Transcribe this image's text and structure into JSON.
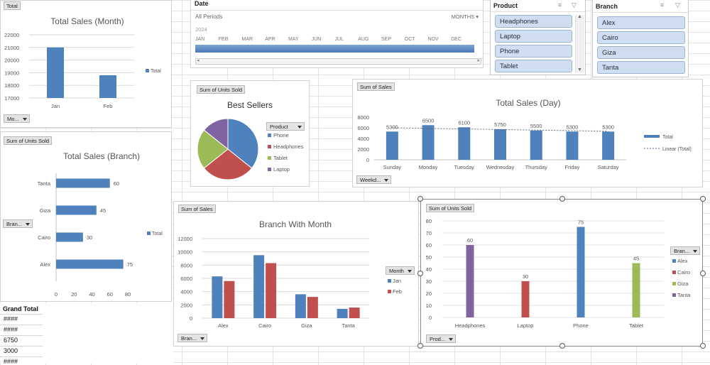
{
  "charts": {
    "month": {
      "filter_field": "Total",
      "title": "Total Sales (Month)",
      "legend": "Total",
      "axis_button": "Mo..."
    },
    "branch": {
      "value_button": "Sum of Units Sold",
      "title": "Total Sales (Branch)",
      "legend": "Total",
      "axis_button": "Bran..."
    },
    "sellers": {
      "value_button": "Sum of Units Sold",
      "title": "Best Sellers",
      "legend_button": "Product"
    },
    "day": {
      "value_button": "Sum of Sales",
      "title": "Total Sales (Day)",
      "legend_total": "Total",
      "legend_linear": "Linear (Total)",
      "axis_button": "Weekd..."
    },
    "bwm": {
      "value_button": "Sum of Sales",
      "title": "Branch With Month",
      "legend_button": "Month",
      "axis_button": "Bran..."
    },
    "units": {
      "value_button": "Sum of Units Sold",
      "legend_button": "Bran...",
      "axis_button": "Prod..."
    }
  },
  "timeline": {
    "title": "Date",
    "range_label": "All Periods",
    "level": "MONTHS",
    "year": "2024",
    "months": [
      "JAN",
      "FEB",
      "MAR",
      "APR",
      "MAY",
      "JUN",
      "JUL",
      "AUG",
      "SEP",
      "OCT",
      "NOV",
      "DEC"
    ]
  },
  "product_slicer": {
    "title": "Product",
    "items": [
      "Headphones",
      "Laptop",
      "Phone",
      "Tablet"
    ]
  },
  "branch_slicer": {
    "title": "Branch",
    "items": [
      "Alex",
      "Cairo",
      "Giza",
      "Tanta"
    ]
  },
  "grand_total": {
    "header": "Grand Total",
    "rows": [
      "####",
      "####",
      "6750",
      "3000",
      "####"
    ]
  },
  "chart_data": [
    {
      "type": "bar",
      "title": "Total Sales (Month)",
      "categories": [
        "Jan",
        "Feb"
      ],
      "series": [
        {
          "name": "Total",
          "values": [
            21000,
            18800
          ]
        }
      ],
      "ylim": [
        17000,
        22000
      ],
      "yticks": [
        17000,
        18000,
        19000,
        20000,
        21000,
        22000
      ],
      "grid": true,
      "legend": "right",
      "color": "#4f81bd"
    },
    {
      "type": "bar",
      "orientation": "horizontal",
      "title": "Total Sales (Branch)",
      "categories": [
        "Tanta",
        "Giza",
        "Cairo",
        "Alex"
      ],
      "series": [
        {
          "name": "Total",
          "values": [
            60,
            45,
            30,
            75
          ]
        }
      ],
      "xlim": [
        0,
        80
      ],
      "xticks": [
        0,
        20,
        40,
        60,
        80
      ],
      "data_labels": true,
      "legend": "right",
      "color": "#4f81bd"
    },
    {
      "type": "pie",
      "title": "Best Sellers",
      "categories": [
        "Phone",
        "Headphones",
        "Tablet",
        "Laptop"
      ],
      "values": [
        75,
        60,
        45,
        30
      ],
      "colors": [
        "#4f81bd",
        "#c0504d",
        "#9bbb59",
        "#8064a2"
      ],
      "legend": "right"
    },
    {
      "type": "bar",
      "title": "Total Sales (Day)",
      "categories": [
        "Sunday",
        "Monday",
        "Tuesday",
        "Wednesday",
        "Thursday",
        "Friday",
        "Saturday"
      ],
      "series": [
        {
          "name": "Total",
          "values": [
            5300,
            6500,
            6100,
            5750,
            5500,
            5300,
            5300
          ]
        }
      ],
      "trendline": "Linear (Total)",
      "ylim": [
        0,
        8000
      ],
      "yticks": [
        0,
        2000,
        4000,
        6000,
        8000
      ],
      "data_labels": true,
      "legend": "right",
      "color": "#4f81bd"
    },
    {
      "type": "bar",
      "title": "Branch With Month",
      "categories": [
        "Alex",
        "Cairo",
        "Giza",
        "Tanta"
      ],
      "series": [
        {
          "name": "Jan",
          "values": [
            6300,
            9500,
            3600,
            1400
          ]
        },
        {
          "name": "Feb",
          "values": [
            5600,
            8300,
            3200,
            1600
          ]
        }
      ],
      "colors": [
        "#4f81bd",
        "#c0504d"
      ],
      "ylim": [
        0,
        12000
      ],
      "yticks": [
        0,
        2000,
        4000,
        6000,
        8000,
        10000,
        12000
      ],
      "grid": true,
      "legend": "right"
    },
    {
      "type": "bar",
      "categories": [
        "Headphones",
        "Laptop",
        "Phone",
        "Tablet"
      ],
      "series": [
        {
          "name": "Alex",
          "values": [
            0,
            0,
            75,
            0
          ]
        },
        {
          "name": "Cairo",
          "values": [
            0,
            30,
            0,
            0
          ]
        },
        {
          "name": "Giza",
          "values": [
            0,
            0,
            0,
            45
          ]
        },
        {
          "name": "Tanta",
          "values": [
            60,
            0,
            0,
            0
          ]
        }
      ],
      "colors": [
        "#4f81bd",
        "#c0504d",
        "#9bbb59",
        "#8064a2"
      ],
      "ylim": [
        0,
        80
      ],
      "yticks": [
        0,
        10,
        20,
        30,
        40,
        50,
        60,
        70,
        80
      ],
      "grid": true,
      "data_labels": true,
      "legend": "right"
    }
  ]
}
